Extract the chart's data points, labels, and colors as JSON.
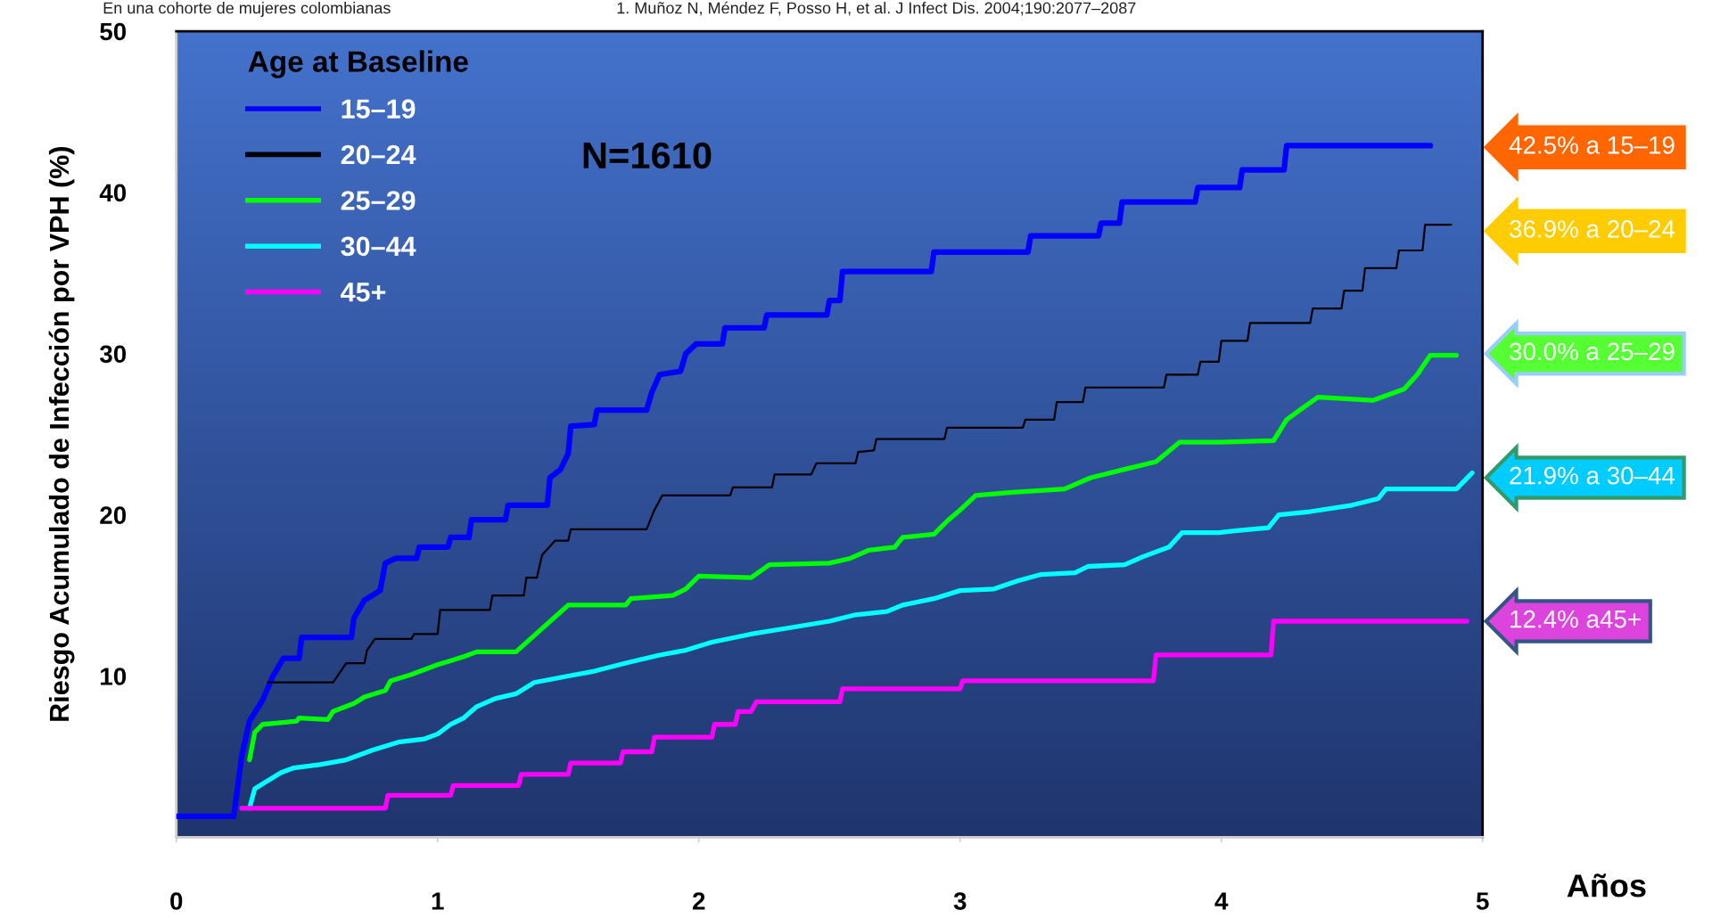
{
  "chart_data": {
    "type": "line",
    "xlabel": "Años",
    "ylabel": "Riesgo Acumulado de Infección por VPH (%)",
    "legend_title": "Age at Baseline",
    "legend": "top left",
    "grid": false,
    "marker": "none",
    "line_style": "solid",
    "xlim": [
      0,
      5
    ],
    "xticks": [
      0,
      1,
      2,
      3,
      4,
      5
    ],
    "ylim": [
      0,
      50
    ],
    "yticks": [
      10,
      20,
      30,
      40,
      50
    ],
    "annotations": [
      "En una cohorte de mujeres colombianas",
      "1. Muñoz N, Méndez F, Posso H, et al. J Infect Dis. 2004;190:2077–2087",
      "N=1610",
      "42.5% a 15–19",
      "36.9% a 20–24",
      "30.0% a 25–29",
      "21.9% a 30–44",
      "12.4% a45+"
    ],
    "series": [
      {
        "name": "15–19",
        "color": "#0000ff",
        "x": [
          0,
          0.22,
          0.25,
          0.28,
          0.33,
          0.37,
          0.41,
          0.47,
          0.48,
          0.67,
          0.68,
          0.72,
          0.78,
          0.8,
          0.84,
          0.92,
          0.93,
          1.04,
          1.05,
          1.12,
          1.13,
          1.26,
          1.27,
          1.42,
          1.43,
          1.47,
          1.5,
          1.51,
          1.6,
          1.61,
          1.8,
          1.82,
          1.85,
          1.93,
          1.95,
          1.99,
          2.09,
          2.1,
          2.25,
          2.26,
          2.49,
          2.5,
          2.54,
          2.55,
          2.89,
          2.9,
          3.26,
          3.27,
          3.53,
          3.54,
          3.61,
          3.62,
          3.9,
          3.91,
          4.07,
          4.08,
          4.24,
          4.25,
          4.8
        ],
        "values": [
          1.3,
          1.3,
          5,
          7.2,
          8.5,
          10,
          11.1,
          11.1,
          12.4,
          12.4,
          13.6,
          14.7,
          15.3,
          17,
          17.3,
          17.3,
          18,
          18,
          18.6,
          18.6,
          19.7,
          19.7,
          20.6,
          20.6,
          22.3,
          22.8,
          23.8,
          25.5,
          25.6,
          26.5,
          26.5,
          27.6,
          28.7,
          28.9,
          30,
          30.6,
          30.6,
          31.6,
          31.6,
          32.4,
          32.4,
          33.3,
          33.3,
          35.1,
          35.1,
          36.3,
          36.3,
          37.3,
          37.3,
          38.1,
          38.1,
          39.4,
          39.4,
          40.3,
          40.3,
          41.4,
          41.4,
          42.9,
          42.9
        ]
      },
      {
        "name": "20–24",
        "color": "#000000",
        "x": [
          0.35,
          0.6,
          0.65,
          0.72,
          0.73,
          0.76,
          0.9,
          0.91,
          1.0,
          1.01,
          1.2,
          1.21,
          1.33,
          1.34,
          1.38,
          1.4,
          1.45,
          1.5,
          1.51,
          1.8,
          1.83,
          1.86,
          2.12,
          2.13,
          2.28,
          2.29,
          2.43,
          2.45,
          2.6,
          2.61,
          2.67,
          2.68,
          2.94,
          2.95,
          3.24,
          3.25,
          3.36,
          3.37,
          3.47,
          3.48,
          3.78,
          3.79,
          3.91,
          3.92,
          3.99,
          4.0,
          4.1,
          4.11,
          4.34,
          4.35,
          4.46,
          4.47,
          4.54,
          4.55,
          4.67,
          4.68,
          4.77,
          4.78,
          4.88
        ],
        "values": [
          9.6,
          9.6,
          10.8,
          10.8,
          11.6,
          12.3,
          12.3,
          12.6,
          12.6,
          14.1,
          14.1,
          15,
          15,
          16.1,
          16.1,
          17.5,
          18.4,
          18.4,
          19.1,
          19.1,
          20.3,
          21.2,
          21.2,
          21.7,
          21.7,
          22.5,
          22.5,
          23.2,
          23.2,
          23.9,
          24,
          24.7,
          24.7,
          25.4,
          25.4,
          25.9,
          25.9,
          27,
          27,
          27.9,
          27.9,
          28.7,
          28.7,
          29.5,
          29.5,
          30.8,
          30.8,
          31.9,
          31.9,
          32.8,
          32.8,
          33.9,
          33.9,
          35.3,
          35.3,
          36.4,
          36.4,
          38,
          38
        ]
      },
      {
        "name": "25–29",
        "color": "#00ff00",
        "x": [
          0.28,
          0.3,
          0.33,
          0.4,
          0.46,
          0.47,
          0.58,
          0.6,
          0.68,
          0.72,
          0.8,
          0.82,
          0.9,
          1.0,
          1.1,
          1.15,
          1.3,
          1.5,
          1.72,
          1.74,
          1.9,
          1.95,
          2.0,
          2.2,
          2.27,
          2.5,
          2.58,
          2.65,
          2.75,
          2.78,
          2.9,
          2.95,
          3.0,
          3.06,
          3.2,
          3.4,
          3.5,
          3.65,
          3.75,
          3.84,
          3.9,
          4.0,
          4.2,
          4.25,
          4.3,
          4.37,
          4.58,
          4.7,
          4.75,
          4.8,
          4.9
        ],
        "values": [
          4.8,
          6.5,
          7,
          7.1,
          7.2,
          7.4,
          7.3,
          7.8,
          8.3,
          8.7,
          9.1,
          9.7,
          10.1,
          10.7,
          11.2,
          11.5,
          11.5,
          14.4,
          14.4,
          14.8,
          15,
          15.4,
          16.2,
          16.1,
          16.9,
          17,
          17.3,
          17.8,
          18,
          18.6,
          18.8,
          19.6,
          20.3,
          21.2,
          21.4,
          21.6,
          22.3,
          22.9,
          23.3,
          24.5,
          24.5,
          24.5,
          24.6,
          25.9,
          26.5,
          27.3,
          27.1,
          27.8,
          28.7,
          29.9,
          29.9
        ]
      },
      {
        "name": "30–44",
        "color": "#00ffff",
        "x": [
          0.28,
          0.3,
          0.35,
          0.4,
          0.45,
          0.55,
          0.65,
          0.75,
          0.85,
          0.95,
          1.0,
          1.05,
          1.1,
          1.15,
          1.22,
          1.3,
          1.37,
          1.5,
          1.6,
          1.72,
          1.85,
          1.95,
          2.05,
          2.2,
          2.35,
          2.5,
          2.6,
          2.72,
          2.78,
          2.9,
          3.0,
          3.13,
          3.22,
          3.31,
          3.44,
          3.49,
          3.63,
          3.7,
          3.8,
          3.85,
          3.99,
          4.05,
          4.18,
          4.22,
          4.34,
          4.5,
          4.6,
          4.63,
          4.9,
          4.96
        ],
        "values": [
          1.8,
          3,
          3.5,
          4,
          4.3,
          4.5,
          4.8,
          5.4,
          5.9,
          6.1,
          6.4,
          7,
          7.4,
          8.1,
          8.6,
          8.9,
          9.6,
          10,
          10.3,
          10.8,
          11.3,
          11.6,
          12.1,
          12.6,
          13,
          13.4,
          13.8,
          14,
          14.4,
          14.8,
          15.3,
          15.4,
          15.9,
          16.3,
          16.4,
          16.8,
          16.9,
          17.4,
          18,
          18.9,
          18.9,
          19,
          19.2,
          20,
          20.2,
          20.6,
          21,
          21.6,
          21.6,
          22.6
        ]
      },
      {
        "name": "45+",
        "color": "#ff00ff",
        "x": [
          0.25,
          0.8,
          0.81,
          1.05,
          1.06,
          1.31,
          1.32,
          1.5,
          1.51,
          1.7,
          1.71,
          1.82,
          1.83,
          2.05,
          2.06,
          2.14,
          2.15,
          2.2,
          2.22,
          2.54,
          2.55,
          3.0,
          3.01,
          3.74,
          3.75,
          4.19,
          4.2,
          4.94
        ],
        "values": [
          1.8,
          1.8,
          2.6,
          2.6,
          3.2,
          3.2,
          3.9,
          3.9,
          4.6,
          4.6,
          5.3,
          5.3,
          6.2,
          6.2,
          7,
          7,
          7.8,
          7.8,
          8.4,
          8.4,
          9.2,
          9.2,
          9.7,
          9.7,
          11.3,
          11.3,
          13.4,
          13.4
        ]
      }
    ]
  }
}
